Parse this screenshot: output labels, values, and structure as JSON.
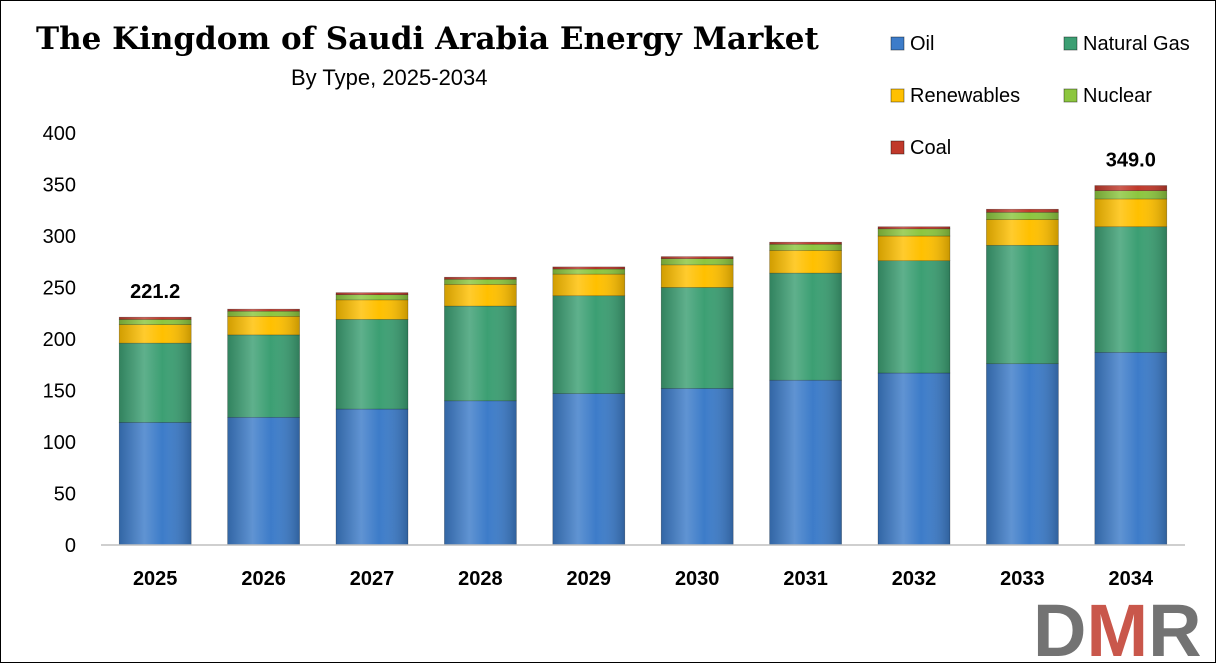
{
  "chart_data": {
    "type": "bar",
    "stacked": true,
    "title": "The Kingdom of Saudi Arabia Energy Market",
    "subtitle": "By Type, 2025-2034",
    "xlabel": "",
    "ylabel": "",
    "ylim": [
      0,
      400
    ],
    "yticks": [
      "0",
      "50",
      "100",
      "150",
      "200",
      "250",
      "300",
      "350",
      "400"
    ],
    "grid": false,
    "legend_position": "top-right",
    "categories": [
      "2025",
      "2026",
      "2027",
      "2028",
      "2029",
      "2030",
      "2031",
      "2032",
      "2033",
      "2034"
    ],
    "series": [
      {
        "name": "Oil",
        "color": "#3d7cc9",
        "values": [
          119,
          124,
          132,
          140,
          147,
          152,
          160,
          167,
          176,
          187
        ]
      },
      {
        "name": "Natural Gas",
        "color": "#3c9f73",
        "values": [
          77,
          80,
          87,
          92,
          95,
          98,
          104,
          109,
          115,
          122
        ]
      },
      {
        "name": "Renewables",
        "color": "#ffc000",
        "values": [
          18,
          18,
          19,
          21,
          21,
          22,
          22,
          24,
          25,
          27
        ]
      },
      {
        "name": "Nuclear",
        "color": "#8cc63f",
        "values": [
          5,
          5,
          5,
          5,
          5,
          6,
          6,
          7,
          7,
          8
        ]
      },
      {
        "name": "Coal",
        "color": "#c0392b",
        "values": [
          2.2,
          2,
          2,
          2,
          2,
          2,
          2,
          2,
          3,
          5
        ]
      }
    ],
    "data_labels": [
      {
        "category": "2025",
        "text": "221.2"
      },
      {
        "category": "2034",
        "text": "349.0"
      }
    ]
  },
  "logo": {
    "text": "DMR",
    "colors": [
      "#5a5a5a",
      "#c0392b"
    ]
  }
}
